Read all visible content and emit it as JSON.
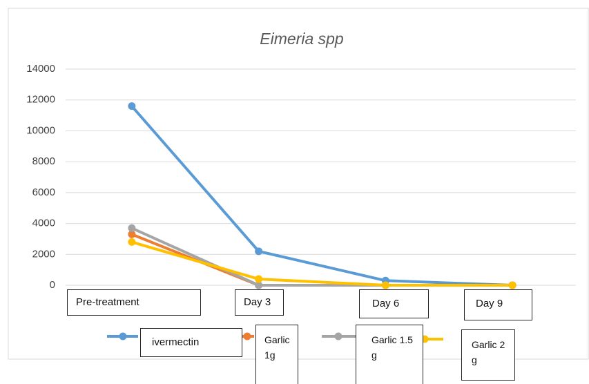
{
  "chart_data": {
    "type": "line",
    "title": "Eimeria spp",
    "categories": [
      "Pre-treatment",
      "Day 3",
      "Day 6",
      "Day 9"
    ],
    "series": [
      {
        "name": "ivermectin",
        "color": "#5b9bd5",
        "values": [
          11600,
          2200,
          300,
          0
        ]
      },
      {
        "name": "Garlic 1g",
        "color": "#ed7d31",
        "values": [
          3300,
          0,
          0,
          0
        ]
      },
      {
        "name": "Garlic 1.5 g",
        "color": "#a5a5a5",
        "values": [
          3700,
          0,
          0,
          0
        ]
      },
      {
        "name": "Garlic 2 g",
        "color": "#ffc000",
        "values": [
          2800,
          400,
          0,
          0
        ]
      }
    ],
    "ylim": [
      0,
      14000
    ],
    "yticks": [
      0,
      2000,
      4000,
      6000,
      8000,
      10000,
      12000,
      14000
    ],
    "grid": true,
    "legend": "bottom"
  }
}
